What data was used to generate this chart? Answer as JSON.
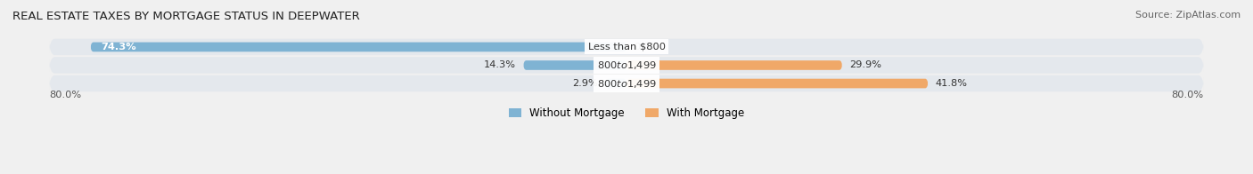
{
  "title": "REAL ESTATE TAXES BY MORTGAGE STATUS IN DEEPWATER",
  "source": "Source: ZipAtlas.com",
  "bars": [
    {
      "label": "Less than $800",
      "without_mortgage": 74.3,
      "with_mortgage": 0.0
    },
    {
      "label": "$800 to $1,499",
      "without_mortgage": 14.3,
      "with_mortgage": 29.9
    },
    {
      "label": "$800 to $1,499",
      "without_mortgage": 2.9,
      "with_mortgage": 41.8
    }
  ],
  "xlim_min": -80.0,
  "xlim_max": 80.0,
  "x_left_label": "80.0%",
  "x_right_label": "80.0%",
  "color_without": "#7fb3d3",
  "color_with": "#f0a868",
  "legend_without": "Without Mortgage",
  "legend_with": "With Mortgage",
  "bar_height": 0.52,
  "background_color": "#f0f0f0",
  "row_background": "#e4e8ed",
  "title_fontsize": 9.5,
  "source_fontsize": 8,
  "label_fontsize": 8.2,
  "pct_fontsize": 8.2
}
